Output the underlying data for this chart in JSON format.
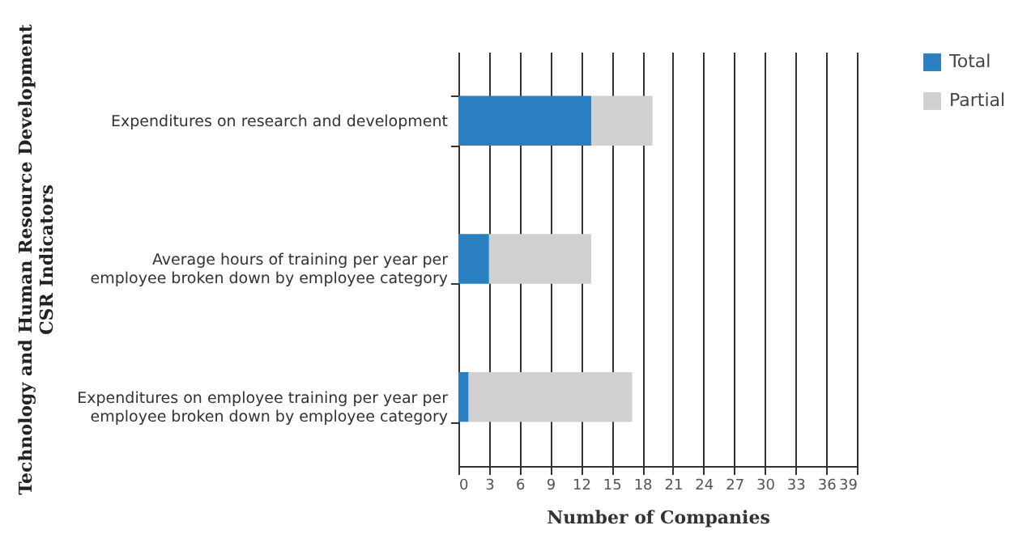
{
  "chart_data": {
    "type": "bar",
    "orientation": "horizontal",
    "stacked": true,
    "categories": [
      "Expenditures on research and development",
      "Average hours of training per year per employee broken down by employee category",
      "Expenditures on employee training per year per employee broken down by employee category"
    ],
    "series": [
      {
        "name": "Total",
        "color": "#2a7fc0",
        "values": [
          13,
          3,
          1
        ]
      },
      {
        "name": "Partial",
        "color": "#d0d0d0",
        "values": [
          6,
          10,
          16
        ]
      }
    ],
    "xlabel": "Number of Companies",
    "ylabel": "Technology and Human Resource Development CSR Indicators",
    "xlim": [
      0,
      39
    ],
    "xticks": [
      0,
      3,
      6,
      9,
      12,
      15,
      18,
      21,
      24,
      27,
      30,
      33,
      36,
      39
    ],
    "grid": "x",
    "legend": "right"
  }
}
